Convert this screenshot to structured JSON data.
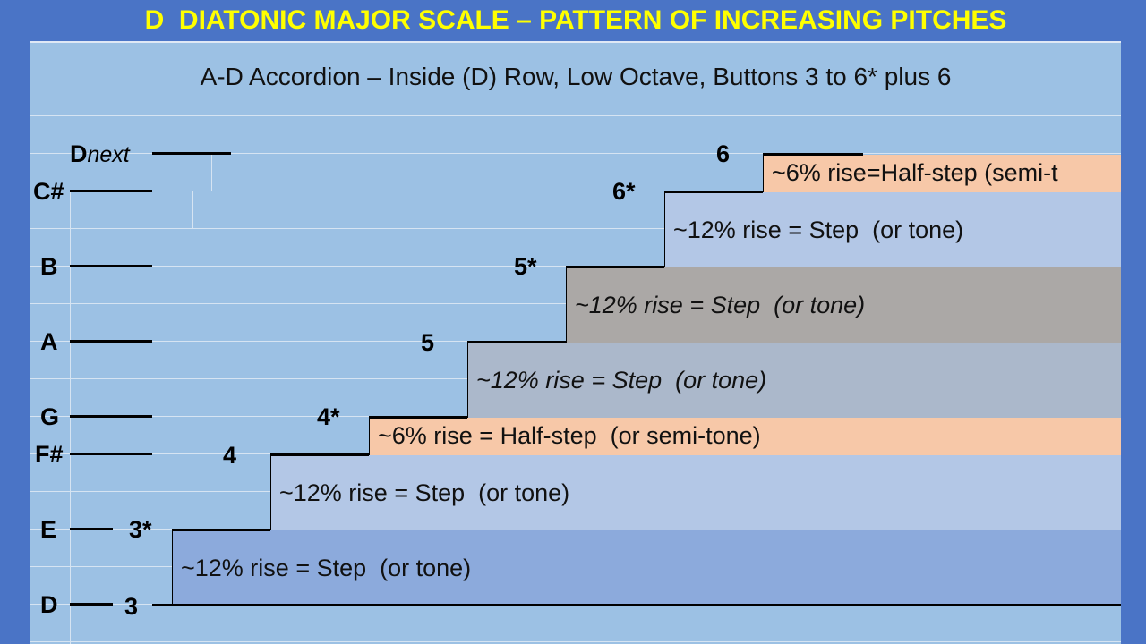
{
  "title": "D  DIATONIC MAJOR SCALE – PATTERN OF INCREASING PITCHES",
  "subtitle": "A-D Accordion – Inside (D) Row, Low Octave, Buttons 3 to 6* plus 6",
  "notes": {
    "d_next_main": "D",
    "d_next_sub": "next",
    "c_sharp": "C#",
    "b": "B",
    "a": "A",
    "g": "G",
    "f_sharp": "F#",
    "e": "E",
    "d": "D"
  },
  "buttons": {
    "b3": "3",
    "b3s": "3*",
    "b4": "4",
    "b4s": "4*",
    "b5": "5",
    "b5s": "5*",
    "b6s": "6*",
    "b6": "6"
  },
  "intervals": [
    {
      "text": "~12% rise = Step  (or tone)",
      "color": "#8caadc"
    },
    {
      "text": "~12% rise = Step  (or tone)",
      "color": "#b3c7e6"
    },
    {
      "text": "~6% rise = Half-step  (or semi-tone)",
      "color": "#f7c8a8"
    },
    {
      "text": "~12% rise = Step  (or tone)",
      "color": "#abb8cb"
    },
    {
      "text": "~12% rise = Step  (or tone)",
      "color": "#aba8a6"
    },
    {
      "text": "~12% rise = Step  (or tone)",
      "color": "#b3c7e6"
    },
    {
      "text": "~6% rise=Half-step (semi-t",
      "color": "#f7c8a8"
    }
  ]
}
